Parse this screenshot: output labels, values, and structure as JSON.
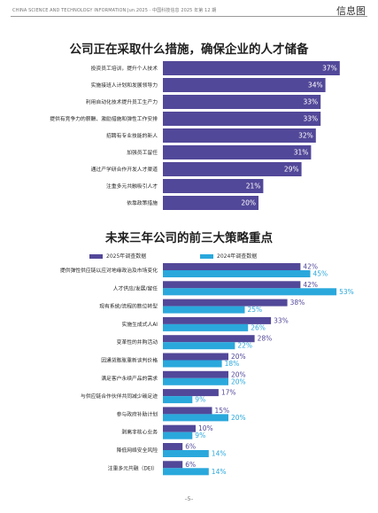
{
  "header": {
    "left_text": "CHINA SCIENCE AND TECHNOLOGY INFORMATION    Jun.2025 · 中国科技信息 2025 年第 12 期",
    "right_text": "信息图"
  },
  "footer": {
    "page": "–5–"
  },
  "colors": {
    "purple": "#524899",
    "cyan": "#2aa8dc",
    "bg_bar": "#ffffff"
  },
  "chart_data": [
    {
      "type": "bar",
      "orientation": "horizontal",
      "title": "公司正在采取什么措施，确保企业的人才储备",
      "categories": [
        "投资员工培训，提升个人技术",
        "实施接班人计划和发展领导力",
        "利用自动化技术提升员工生产力",
        "提供有竞争力的薪酬、激励措施和弹性工作安排",
        "招聘有专业技能的新人",
        "加强员工留任",
        "通过产学研合作开发人才渠道",
        "注重多元共融吸引人才",
        "依靠政策措施"
      ],
      "values": [
        37,
        34,
        33,
        33,
        32,
        31,
        29,
        21,
        20
      ],
      "value_labels": [
        "37%",
        "34%",
        "33%",
        "33%",
        "32%",
        "31%",
        "29%",
        "21%",
        "20%"
      ],
      "color": "#524899",
      "xlim": [
        0,
        40
      ]
    },
    {
      "type": "bar",
      "orientation": "horizontal",
      "title": "未来三年公司的前三大策略重点",
      "series": [
        {
          "name": "2025年调查数据",
          "color": "#524899",
          "values": [
            42,
            42,
            38,
            33,
            28,
            20,
            20,
            17,
            15,
            10,
            6,
            6
          ],
          "value_labels": [
            "42%",
            "42%",
            "38%",
            "33%",
            "28%",
            "20%",
            "20%",
            "17%",
            "15%",
            "10%",
            "6%",
            "6%"
          ]
        },
        {
          "name": "2024年调查数据",
          "color": "#2aa8dc",
          "values": [
            45,
            53,
            25,
            26,
            22,
            18,
            20,
            9,
            20,
            9,
            14,
            14
          ],
          "value_labels": [
            "45%",
            "53%",
            "25%",
            "26%",
            "22%",
            "18%",
            "20%",
            "9%",
            "20%",
            "9%",
            "14%",
            "14%"
          ]
        }
      ],
      "categories": [
        "提供弹性供应链以应对地缘政治及市场变化",
        "人才供应/发展/留任",
        "现有系统/流程的数位转型",
        "实施生成式人AI",
        "变革性的并购活动",
        "因通货膨胀重新谈判价格",
        "满足客户永续产品的需求",
        "与供应链合作伙伴共同减少碳足迹",
        "参与政府补助计划",
        "剥离非核心业务",
        "降低网络安全风险",
        "注重多元共融（DEI）"
      ],
      "xlim": [
        0,
        55
      ]
    }
  ]
}
